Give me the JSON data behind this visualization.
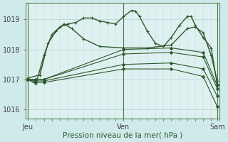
{
  "bg_color": "#ceeaea",
  "grid_color": "#b8d8d8",
  "plot_bg": "#dff0f0",
  "line_color": "#2d5a2d",
  "xlabel": "Pression niveau de la mer( hPa )",
  "xtick_labels": [
    "Jeu",
    "Ven",
    "Sam"
  ],
  "xtick_positions": [
    0,
    48,
    95
  ],
  "ylim": [
    1015.7,
    1019.55
  ],
  "yticks": [
    1016,
    1017,
    1018,
    1019
  ],
  "n_points": 96,
  "series": [
    {
      "points": [
        [
          0,
          1017.0
        ],
        [
          4,
          1016.85
        ],
        [
          8,
          1017.8
        ],
        [
          12,
          1018.5
        ],
        [
          16,
          1018.75
        ],
        [
          20,
          1018.85
        ],
        [
          24,
          1018.9
        ],
        [
          28,
          1019.05
        ],
        [
          32,
          1019.05
        ],
        [
          36,
          1018.95
        ],
        [
          40,
          1018.9
        ],
        [
          44,
          1018.85
        ],
        [
          48,
          1019.1
        ],
        [
          52,
          1019.3
        ],
        [
          54,
          1019.28
        ],
        [
          56,
          1019.1
        ],
        [
          60,
          1018.6
        ],
        [
          64,
          1018.2
        ],
        [
          68,
          1018.1
        ],
        [
          72,
          1018.4
        ],
        [
          76,
          1018.8
        ],
        [
          80,
          1019.1
        ],
        [
          82,
          1019.1
        ],
        [
          84,
          1018.8
        ],
        [
          88,
          1018.4
        ],
        [
          92,
          1018.05
        ],
        [
          95,
          1016.85
        ]
      ],
      "marker": "+",
      "ms": 3.5,
      "lw": 1.0,
      "ls": "-"
    },
    {
      "points": [
        [
          0,
          1017.05
        ],
        [
          6,
          1017.15
        ],
        [
          10,
          1018.2
        ],
        [
          14,
          1018.6
        ],
        [
          18,
          1018.85
        ],
        [
          22,
          1018.7
        ],
        [
          28,
          1018.35
        ],
        [
          36,
          1018.1
        ],
        [
          48,
          1018.05
        ],
        [
          60,
          1018.05
        ],
        [
          72,
          1018.15
        ],
        [
          80,
          1018.7
        ],
        [
          84,
          1018.75
        ],
        [
          88,
          1018.55
        ],
        [
          92,
          1017.8
        ],
        [
          95,
          1016.95
        ]
      ],
      "marker": "+",
      "ms": 3.5,
      "lw": 1.0,
      "ls": "-"
    },
    {
      "points": [
        [
          0,
          1017.0
        ],
        [
          4,
          1017.0
        ],
        [
          8,
          1017.0
        ],
        [
          48,
          1018.0
        ],
        [
          72,
          1018.05
        ],
        [
          88,
          1017.9
        ],
        [
          95,
          1016.8
        ]
      ],
      "marker": "D",
      "ms": 2.0,
      "lw": 0.8,
      "ls": "-"
    },
    {
      "points": [
        [
          0,
          1017.0
        ],
        [
          4,
          1017.0
        ],
        [
          8,
          1017.0
        ],
        [
          48,
          1017.85
        ],
        [
          72,
          1017.9
        ],
        [
          88,
          1017.75
        ],
        [
          95,
          1016.7
        ]
      ],
      "marker": "D",
      "ms": 2.0,
      "lw": 0.8,
      "ls": "-"
    },
    {
      "points": [
        [
          0,
          1017.0
        ],
        [
          4,
          1016.95
        ],
        [
          8,
          1016.95
        ],
        [
          48,
          1017.5
        ],
        [
          72,
          1017.55
        ],
        [
          88,
          1017.35
        ],
        [
          95,
          1016.45
        ]
      ],
      "marker": "D",
      "ms": 2.0,
      "lw": 0.8,
      "ls": "-"
    },
    {
      "points": [
        [
          0,
          1017.0
        ],
        [
          4,
          1016.9
        ],
        [
          8,
          1016.9
        ],
        [
          48,
          1017.35
        ],
        [
          72,
          1017.35
        ],
        [
          88,
          1017.1
        ],
        [
          95,
          1016.1
        ]
      ],
      "marker": "D",
      "ms": 2.0,
      "lw": 0.8,
      "ls": "-"
    }
  ]
}
